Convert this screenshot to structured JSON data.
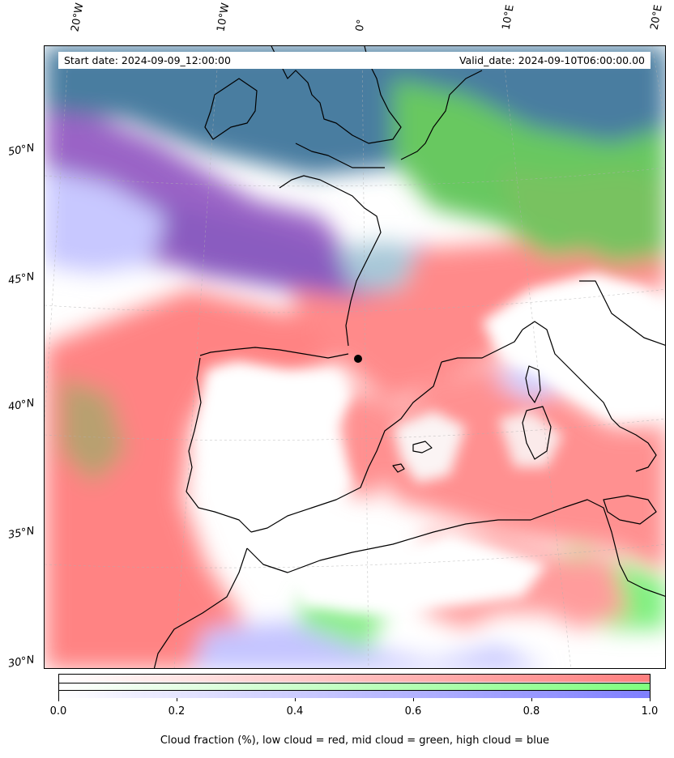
{
  "header": {
    "start_date": "Start date: 2024-09-09_12:00:00",
    "valid_date": "Valid_date: 2024-09-10T06:00:00.00"
  },
  "longitude_labels": [
    "20°W",
    "10°W",
    "0°",
    "10°E",
    "20°E"
  ],
  "latitude_labels": [
    "50°N",
    "45°N",
    "40°N",
    "35°N",
    "30°N"
  ],
  "colorbar": {
    "ticks": [
      "0.0",
      "0.2",
      "0.4",
      "0.6",
      "0.8",
      "1.0"
    ],
    "caption": "Cloud fraction (%), low cloud = red, mid cloud = green, high cloud = blue",
    "colors": {
      "low": "#ff7f7f",
      "mid": "#7fff7f",
      "high": "#7f7fff"
    }
  },
  "legend_colors": {
    "low_cloud": "#ff8080",
    "mid_cloud": "#80ff80",
    "high_cloud": "#8080ff",
    "overlap_purple": "#9060c0",
    "overlap_teal": "#5080a0"
  }
}
